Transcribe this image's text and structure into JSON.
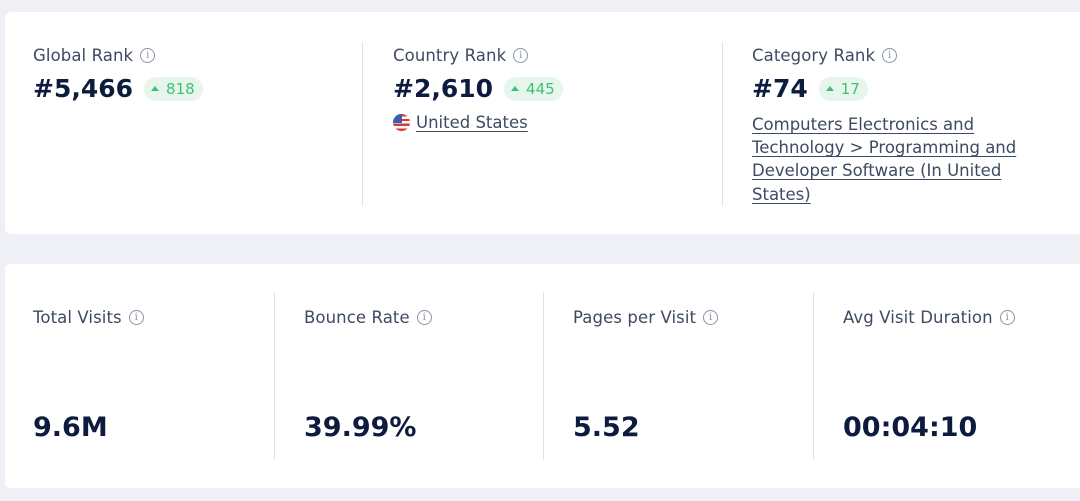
{
  "ranks": [
    {
      "label": "Global Rank",
      "value": "#5,466",
      "delta": "818",
      "delta_direction": "up"
    },
    {
      "label": "Country Rank",
      "value": "#2,610",
      "delta": "445",
      "delta_direction": "up",
      "country": "United States"
    },
    {
      "label": "Category Rank",
      "value": "#74",
      "delta": "17",
      "delta_direction": "up",
      "category": "Computers Electronics and Technology > Programming and Developer Software (In United States)"
    }
  ],
  "metrics": [
    {
      "label": "Total Visits",
      "value": "9.6M"
    },
    {
      "label": "Bounce Rate",
      "value": "39.99%"
    },
    {
      "label": "Pages per Visit",
      "value": "5.52"
    },
    {
      "label": "Avg Visit Duration",
      "value": "00:04:10"
    }
  ],
  "icons": {
    "info": "info-icon",
    "flag": "us-flag-icon",
    "delta": "triangle-up-icon"
  },
  "colors": {
    "positive": "#3ec074",
    "positive_bg": "#e6f6ec",
    "text_primary": "#0d1b3e",
    "text_secondary": "#3e4a61",
    "background": "#eef0f6"
  }
}
